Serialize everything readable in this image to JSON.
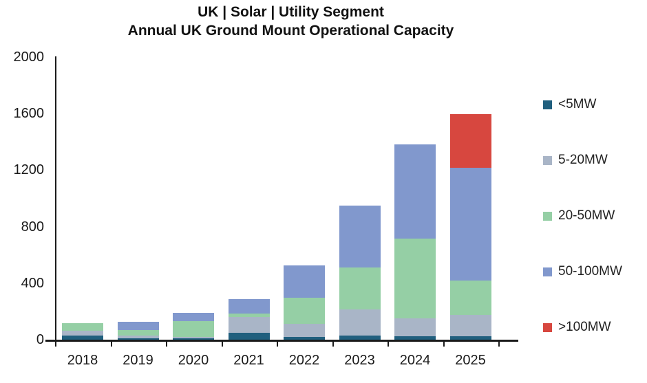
{
  "title": {
    "line1": "UK | Solar | Utility Segment",
    "line2": "Annual UK Ground Mount Operational Capacity"
  },
  "chart_data": {
    "type": "bar",
    "stacked": true,
    "title": "UK | Solar | Utility Segment — Annual UK Ground Mount Operational Capacity",
    "xlabel": "",
    "ylabel": "",
    "ylim": [
      0,
      2000
    ],
    "yticks": [
      0,
      400,
      800,
      1200,
      1600,
      2000
    ],
    "grid": false,
    "legend_position": "right",
    "categories": [
      "2018",
      "2019",
      "2020",
      "2021",
      "2022",
      "2023",
      "2024",
      "2025"
    ],
    "series": [
      {
        "name": "<5MW",
        "color": "#205f7e",
        "values": [
          30,
          10,
          10,
          50,
          20,
          30,
          25,
          25
        ]
      },
      {
        "name": "5-20MW",
        "color": "#a9b5c7",
        "values": [
          35,
          20,
          10,
          110,
          90,
          185,
          125,
          150
        ]
      },
      {
        "name": "20-50MW",
        "color": "#95cfa5",
        "values": [
          50,
          40,
          110,
          25,
          185,
          295,
          565,
          245
        ]
      },
      {
        "name": "50-100MW",
        "color": "#8198cd",
        "values": [
          0,
          55,
          60,
          100,
          230,
          440,
          665,
          795
        ]
      },
      {
        "name": ">100MW",
        "color": "#d7473f",
        "values": [
          0,
          0,
          0,
          0,
          0,
          0,
          0,
          380
        ]
      }
    ]
  },
  "axis_color": "#1a1a1a"
}
